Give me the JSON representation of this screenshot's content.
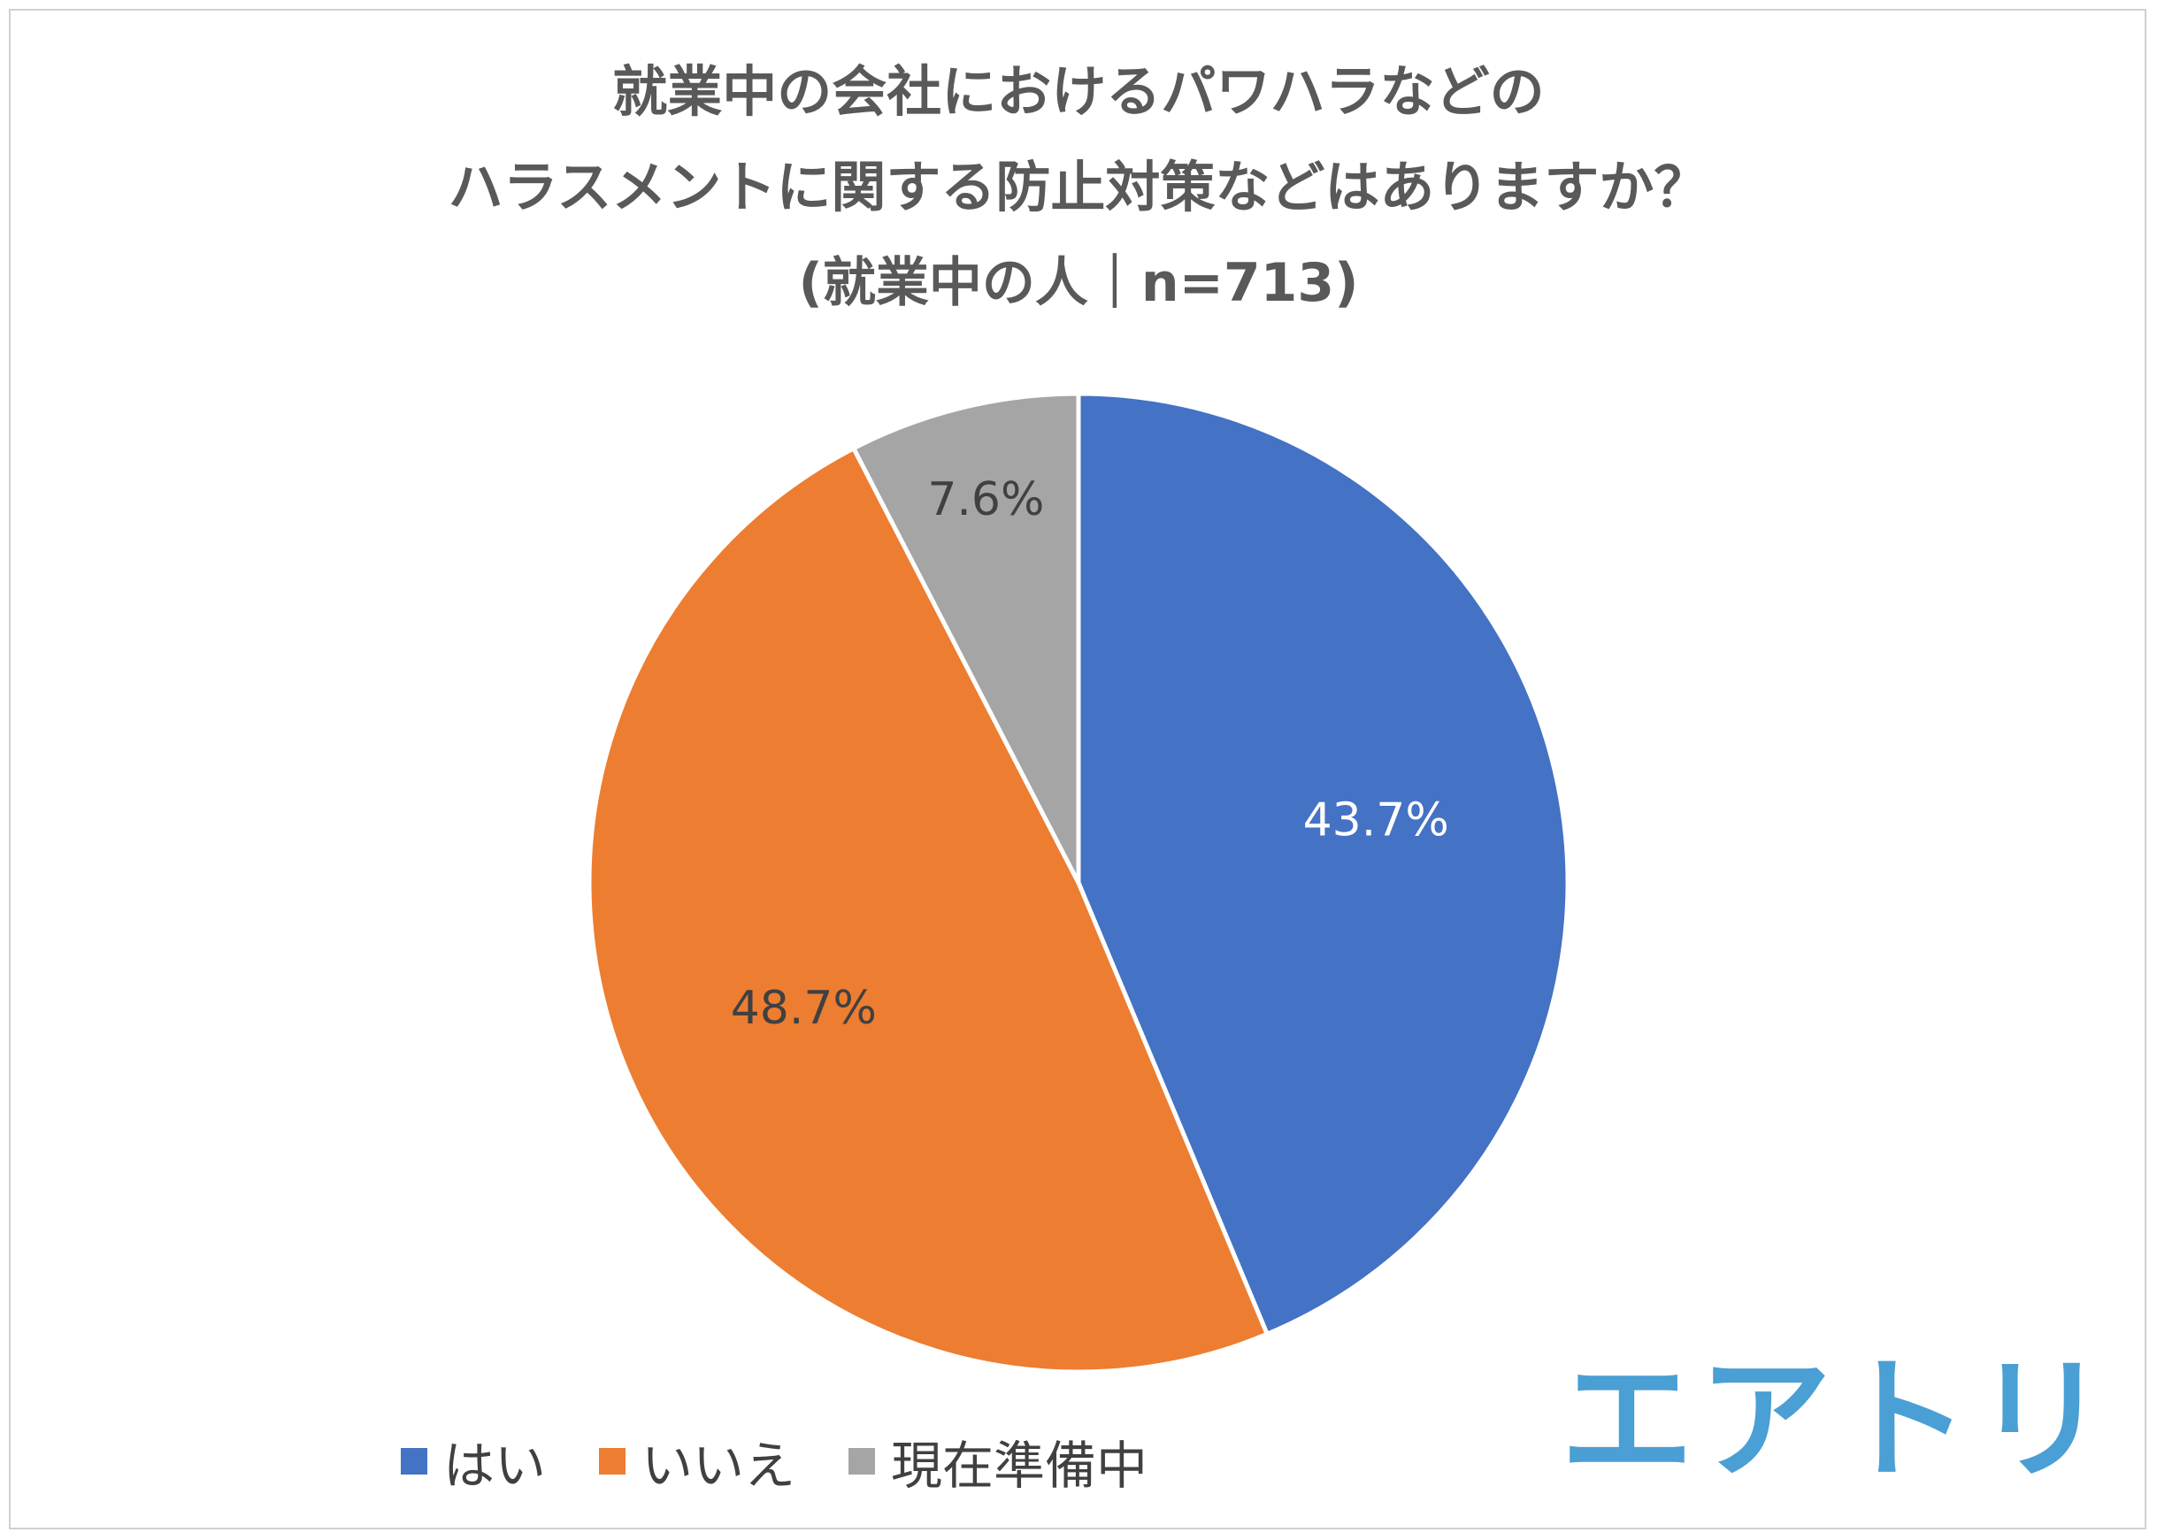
{
  "chart_data": {
    "type": "pie",
    "title_lines": [
      "就業中の会社におけるパワハラなどの",
      "ハラスメントに関する防止対策などはありますか？"
    ],
    "subtitle": "(就業中の人｜n=713)",
    "categories": [
      "はい",
      "いいえ",
      "現在準備中"
    ],
    "values": [
      43.7,
      48.7,
      7.6
    ],
    "labels": [
      "43.7%",
      "48.7%",
      "7.6%"
    ],
    "colors": [
      "#4472c4",
      "#ed7d31",
      "#a5a5a5"
    ],
    "label_colors": [
      "#ffffff",
      "#404040",
      "#404040"
    ],
    "start_angle": "12 o'clock",
    "direction": "clockwise",
    "legend_position": "bottom"
  },
  "brand": {
    "logo_text": "エアトリ",
    "logo_color": "#4a9fd4"
  }
}
